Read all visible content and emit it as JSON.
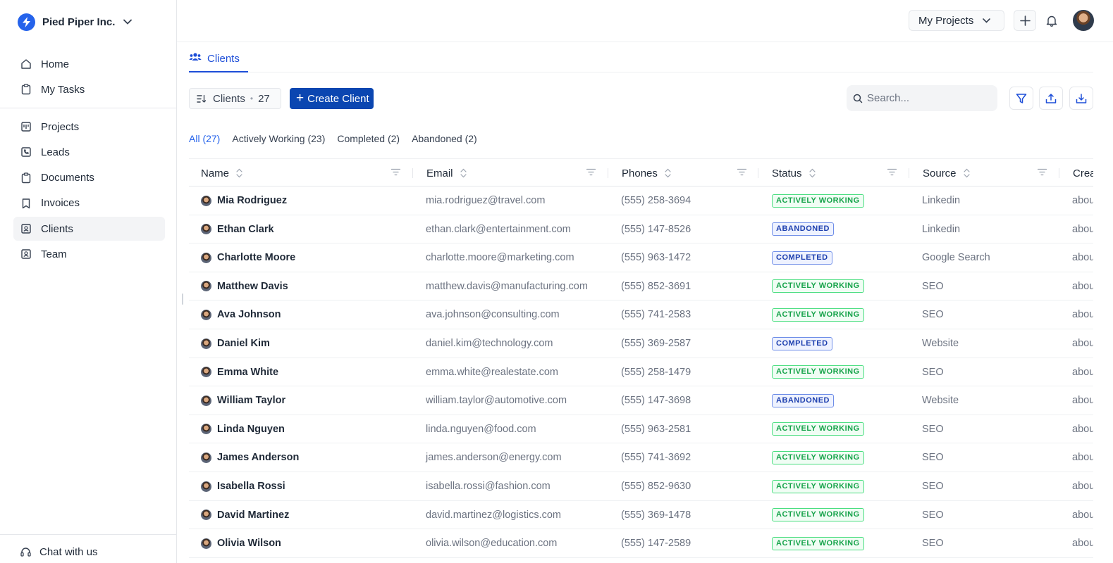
{
  "org": {
    "name": "Pied Piper Inc."
  },
  "sidebar": {
    "items_top": [
      {
        "label": "Home",
        "icon": "home-icon"
      },
      {
        "label": "My Tasks",
        "icon": "clipboard-icon"
      }
    ],
    "items_main": [
      {
        "label": "Projects",
        "icon": "kanban-icon"
      },
      {
        "label": "Leads",
        "icon": "phone-icon"
      },
      {
        "label": "Documents",
        "icon": "clipboard-icon"
      },
      {
        "label": "Invoices",
        "icon": "bookmark-icon"
      },
      {
        "label": "Clients",
        "icon": "contact-icon",
        "active": true
      },
      {
        "label": "Team",
        "icon": "contact-icon"
      }
    ],
    "chat_label": "Chat with us"
  },
  "topbar": {
    "project_select": "My Projects"
  },
  "tab": {
    "label": "Clients"
  },
  "toolbar": {
    "count_label": "Clients",
    "count_value": "27",
    "create_label": "Create Client",
    "search_placeholder": "Search..."
  },
  "filters": [
    {
      "label": "All (27)",
      "active": true
    },
    {
      "label": "Actively Working (23)"
    },
    {
      "label": "Completed (2)"
    },
    {
      "label": "Abandoned (2)"
    }
  ],
  "table": {
    "columns": [
      "Name",
      "Email",
      "Phones",
      "Status",
      "Source",
      "Crea"
    ],
    "rows": [
      {
        "name": "Mia Rodriguez",
        "email": "mia.rodriguez@travel.com",
        "phone": "(555) 258-3694",
        "status": "ACTIVELY WORKING",
        "source": "Linkedin",
        "created": "abou"
      },
      {
        "name": "Ethan Clark",
        "email": "ethan.clark@entertainment.com",
        "phone": "(555) 147-8526",
        "status": "ABANDONED",
        "source": "Linkedin",
        "created": "abou"
      },
      {
        "name": "Charlotte Moore",
        "email": "charlotte.moore@marketing.com",
        "phone": "(555) 963-1472",
        "status": "COMPLETED",
        "source": "Google Search",
        "created": "abou"
      },
      {
        "name": "Matthew Davis",
        "email": "matthew.davis@manufacturing.com",
        "phone": "(555) 852-3691",
        "status": "ACTIVELY WORKING",
        "source": "SEO",
        "created": "abou"
      },
      {
        "name": "Ava Johnson",
        "email": "ava.johnson@consulting.com",
        "phone": "(555) 741-2583",
        "status": "ACTIVELY WORKING",
        "source": "SEO",
        "created": "abou"
      },
      {
        "name": "Daniel Kim",
        "email": "daniel.kim@technology.com",
        "phone": "(555) 369-2587",
        "status": "COMPLETED",
        "source": "Website",
        "created": "abou"
      },
      {
        "name": "Emma White",
        "email": "emma.white@realestate.com",
        "phone": "(555) 258-1479",
        "status": "ACTIVELY WORKING",
        "source": "SEO",
        "created": "abou"
      },
      {
        "name": "William Taylor",
        "email": "william.taylor@automotive.com",
        "phone": "(555) 147-3698",
        "status": "ABANDONED",
        "source": "Website",
        "created": "abou"
      },
      {
        "name": "Linda Nguyen",
        "email": "linda.nguyen@food.com",
        "phone": "(555) 963-2581",
        "status": "ACTIVELY WORKING",
        "source": "SEO",
        "created": "abou"
      },
      {
        "name": "James Anderson",
        "email": "james.anderson@energy.com",
        "phone": "(555) 741-3692",
        "status": "ACTIVELY WORKING",
        "source": "SEO",
        "created": "abou"
      },
      {
        "name": "Isabella Rossi",
        "email": "isabella.rossi@fashion.com",
        "phone": "(555) 852-9630",
        "status": "ACTIVELY WORKING",
        "source": "SEO",
        "created": "abou"
      },
      {
        "name": "David Martinez",
        "email": "david.martinez@logistics.com",
        "phone": "(555) 369-1478",
        "status": "ACTIVELY WORKING",
        "source": "SEO",
        "created": "abou"
      },
      {
        "name": "Olivia Wilson",
        "email": "olivia.wilson@education.com",
        "phone": "(555) 147-2589",
        "status": "ACTIVELY WORKING",
        "source": "SEO",
        "created": "abou"
      }
    ]
  },
  "colors": {
    "brand": "#2563eb",
    "primary_button": "#0b46b1",
    "status_active": "#16a34a",
    "status_other": "#1e40af"
  }
}
